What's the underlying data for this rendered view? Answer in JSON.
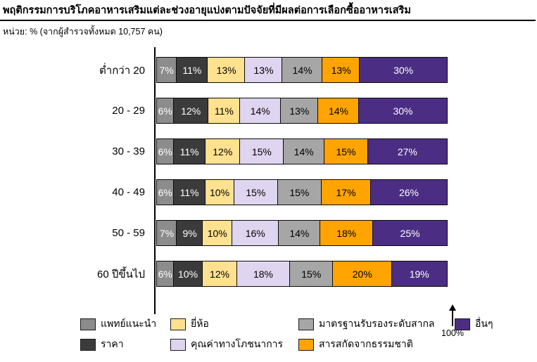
{
  "title": "พฤติกรรมการบริโภคอาหารเสริมแต่ละช่วงอายุแบ่งตามปัจจัยที่มีผลต่อการเลือกซื้ออาหารเสริม",
  "subtitle": "หน่วย: % (จากผู้สำรวจทั้งหมด 10,757 คน)",
  "axis": {
    "max_label": "100%"
  },
  "chart_data": {
    "type": "bar",
    "stacked": true,
    "orientation": "horizontal",
    "unit": "%",
    "xlim": [
      0,
      100
    ],
    "grid": false,
    "legend_position": "bottom",
    "categories": [
      "ต่ำกว่า 20",
      "20 - 29",
      "30 - 39",
      "40 - 49",
      "50 - 59",
      "60 ปีขึ้นไป"
    ],
    "series": [
      {
        "name": "แพทย์แนะนำ",
        "color": "#8C8C8C",
        "text_color": "#ffffff",
        "values": [
          7,
          6,
          6,
          6,
          7,
          6
        ]
      },
      {
        "name": "ราคา",
        "color": "#3B3B3B",
        "text_color": "#ffffff",
        "values": [
          11,
          12,
          11,
          11,
          9,
          10
        ]
      },
      {
        "name": "ยี่ห้อ",
        "color": "#FFE18F",
        "text_color": "#000000",
        "values": [
          13,
          11,
          12,
          10,
          10,
          12
        ]
      },
      {
        "name": "คุณค่าทางโภชนาการ",
        "color": "#E0D5F0",
        "text_color": "#000000",
        "values": [
          13,
          14,
          15,
          15,
          16,
          18
        ]
      },
      {
        "name": "มาตรฐานรับรองระดับสากล",
        "color": "#A6A6A6",
        "text_color": "#000000",
        "values": [
          14,
          13,
          14,
          15,
          14,
          15
        ]
      },
      {
        "name": "สารสกัดจากธรรมชาติ",
        "color": "#FFA400",
        "text_color": "#000000",
        "values": [
          13,
          14,
          15,
          17,
          18,
          20
        ]
      },
      {
        "name": "อื่นๆ",
        "color": "#4B2E83",
        "text_color": "#ffffff",
        "values": [
          30,
          30,
          27,
          26,
          25,
          19
        ]
      }
    ],
    "legend_column_order": [
      0,
      1,
      2,
      3,
      4,
      5,
      6
    ]
  }
}
